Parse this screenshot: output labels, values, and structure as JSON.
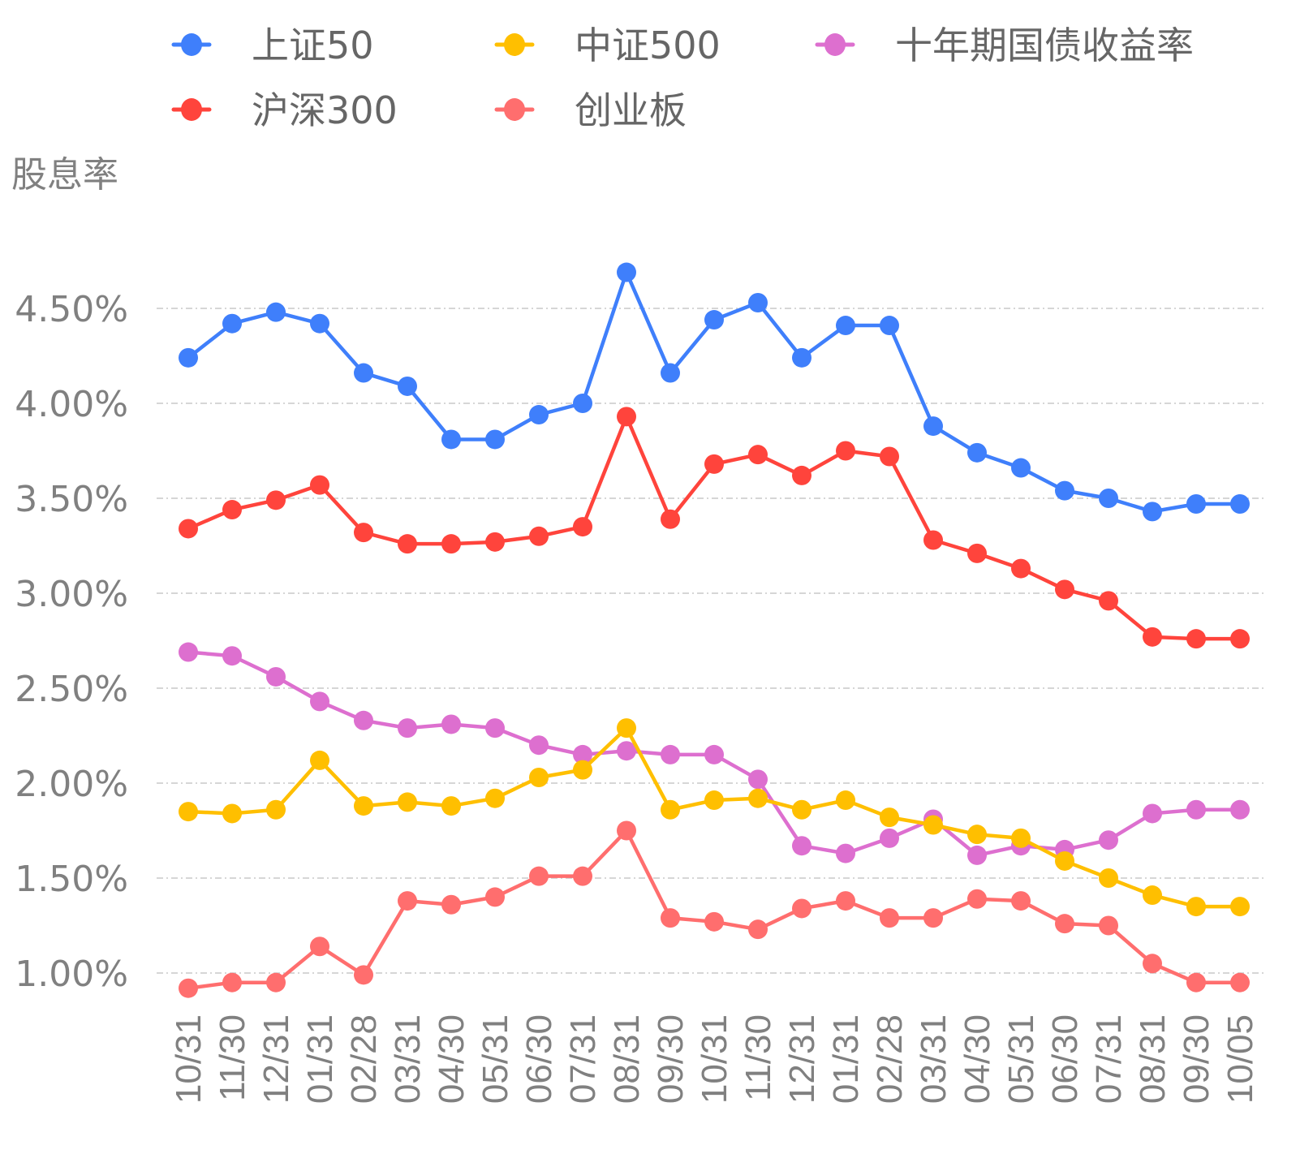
{
  "chart_data": {
    "type": "line",
    "title": "",
    "ylabel": "股息率",
    "xlabel": "",
    "ylim": [
      0.7,
      4.85
    ],
    "yticks": [
      "1.00%",
      "1.50%",
      "2.00%",
      "2.50%",
      "3.00%",
      "3.50%",
      "4.00%",
      "4.50%"
    ],
    "ytick_values": [
      1.0,
      1.5,
      2.0,
      2.5,
      3.0,
      3.5,
      4.0,
      4.5
    ],
    "grid": true,
    "legend_position": "top",
    "categories": [
      "10/31",
      "11/30",
      "12/31",
      "01/31",
      "02/28",
      "03/31",
      "04/30",
      "05/31",
      "06/30",
      "07/31",
      "08/31",
      "09/30",
      "10/31",
      "11/30",
      "12/31",
      "01/31",
      "02/28",
      "03/31",
      "04/30",
      "05/31",
      "06/30",
      "07/31",
      "08/31",
      "09/30",
      "10/05"
    ],
    "series": [
      {
        "name": "上证50",
        "color": "#3f7ffb",
        "values": [
          4.24,
          4.42,
          4.48,
          4.42,
          4.16,
          4.09,
          3.81,
          3.81,
          3.94,
          4.0,
          4.69,
          4.16,
          4.44,
          4.53,
          4.24,
          4.41,
          4.41,
          3.88,
          3.74,
          3.66,
          3.54,
          3.5,
          3.43,
          3.47,
          3.47
        ]
      },
      {
        "name": "沪深300",
        "color": "#ff443c",
        "values": [
          3.34,
          3.44,
          3.49,
          3.57,
          3.32,
          3.26,
          3.26,
          3.27,
          3.3,
          3.35,
          3.93,
          3.39,
          3.68,
          3.73,
          3.62,
          3.75,
          3.72,
          3.28,
          3.21,
          3.13,
          3.02,
          2.96,
          2.77,
          2.76,
          2.76
        ]
      },
      {
        "name": "中证500",
        "color": "#ffbf00",
        "values": [
          1.85,
          1.84,
          1.86,
          2.12,
          1.88,
          1.9,
          1.88,
          1.92,
          2.03,
          2.07,
          2.29,
          1.86,
          1.91,
          1.92,
          1.86,
          1.91,
          1.82,
          1.78,
          1.73,
          1.71,
          1.59,
          1.5,
          1.41,
          1.35,
          1.35
        ]
      },
      {
        "name": "创业板",
        "color": "#ff6e6e",
        "values": [
          0.92,
          0.95,
          0.95,
          1.14,
          0.99,
          1.38,
          1.36,
          1.4,
          1.51,
          1.51,
          1.75,
          1.29,
          1.27,
          1.23,
          1.34,
          1.38,
          1.29,
          1.29,
          1.39,
          1.38,
          1.26,
          1.25,
          1.05,
          0.95,
          0.95
        ]
      },
      {
        "name": "十年期国债收益率",
        "color": "#dd6fcf",
        "values": [
          2.69,
          2.67,
          2.56,
          2.43,
          2.33,
          2.29,
          2.31,
          2.29,
          2.2,
          2.15,
          2.17,
          2.15,
          2.15,
          2.02,
          1.67,
          1.63,
          1.71,
          1.81,
          1.62,
          1.67,
          1.65,
          1.7,
          1.84,
          1.86,
          1.86
        ]
      }
    ]
  }
}
